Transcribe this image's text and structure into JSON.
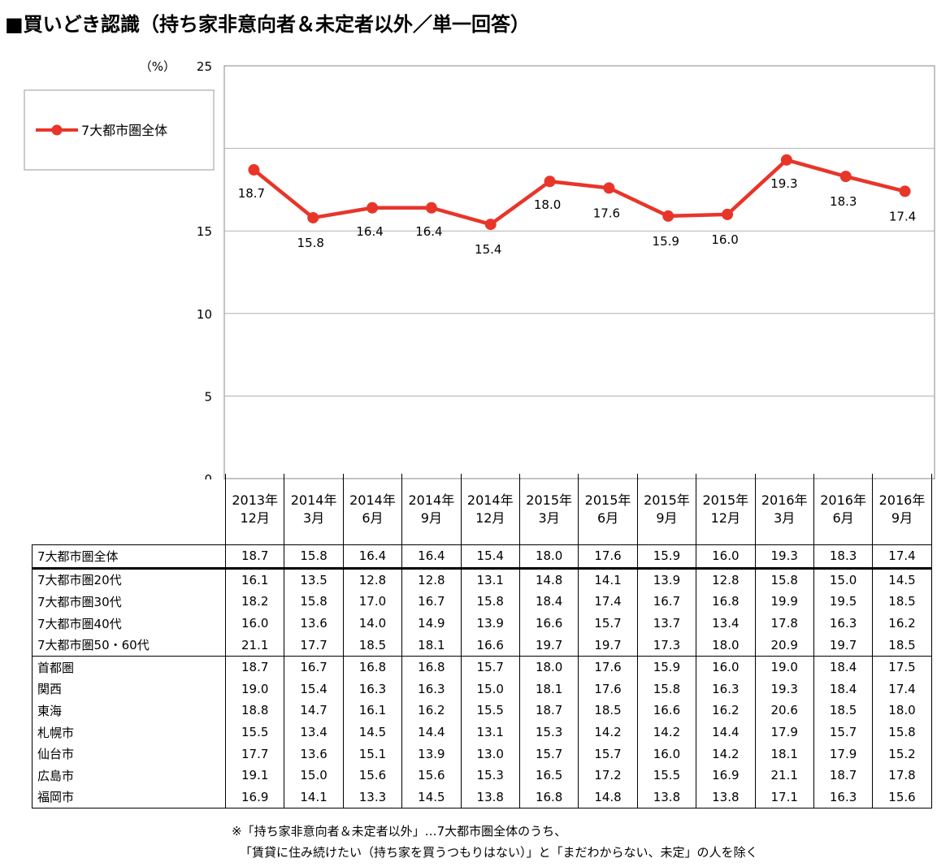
{
  "title": "■買いどき認識（持ち家非意向者＆未定者以外／単一回答）",
  "chart_data": {
    "type": "line",
    "ylabel": "（%）",
    "ylim": [
      0,
      25
    ],
    "yticks": [
      0,
      5,
      10,
      15,
      20,
      25
    ],
    "grid": true,
    "legend_position": "top-left",
    "line_color": "#e8352a",
    "categories": [
      [
        "2013年",
        "12月"
      ],
      [
        "2014年",
        "3月"
      ],
      [
        "2014年",
        "6月"
      ],
      [
        "2014年",
        "9月"
      ],
      [
        "2014年",
        "12月"
      ],
      [
        "2015年",
        "3月"
      ],
      [
        "2015年",
        "6月"
      ],
      [
        "2015年",
        "9月"
      ],
      [
        "2015年",
        "12月"
      ],
      [
        "2016年",
        "3月"
      ],
      [
        "2016年",
        "6月"
      ],
      [
        "2016年",
        "9月"
      ]
    ],
    "series": [
      {
        "name": "7大都市圏全体",
        "values": [
          18.7,
          15.8,
          16.4,
          16.4,
          15.4,
          18.0,
          17.6,
          15.9,
          16.0,
          19.3,
          18.3,
          17.4
        ],
        "labels": [
          "18.7",
          "15.8",
          "16.4",
          "16.4",
          "15.4",
          "18.0",
          "17.6",
          "15.9",
          "16.0",
          "19.3",
          "18.3",
          "17.4"
        ]
      }
    ]
  },
  "table": {
    "total": {
      "label": "7大都市圏全体",
      "values": [
        "18.7",
        "15.8",
        "16.4",
        "16.4",
        "15.4",
        "18.0",
        "17.6",
        "15.9",
        "16.0",
        "19.3",
        "18.3",
        "17.4"
      ]
    },
    "age_rows": [
      {
        "label": "7大都市圏20代",
        "values": [
          "16.1",
          "13.5",
          "12.8",
          "12.8",
          "13.1",
          "14.8",
          "14.1",
          "13.9",
          "12.8",
          "15.8",
          "15.0",
          "14.5"
        ]
      },
      {
        "label": "7大都市圏30代",
        "values": [
          "18.2",
          "15.8",
          "17.0",
          "16.7",
          "15.8",
          "18.4",
          "17.4",
          "16.7",
          "16.8",
          "19.9",
          "19.5",
          "18.5"
        ]
      },
      {
        "label": "7大都市圏40代",
        "values": [
          "16.0",
          "13.6",
          "14.0",
          "14.9",
          "13.9",
          "16.6",
          "15.7",
          "13.7",
          "13.4",
          "17.8",
          "16.3",
          "16.2"
        ]
      },
      {
        "label": "7大都市圏50・60代",
        "values": [
          "21.1",
          "17.7",
          "18.5",
          "18.1",
          "16.6",
          "19.7",
          "19.7",
          "17.3",
          "18.0",
          "20.9",
          "19.7",
          "18.5"
        ]
      }
    ],
    "region_rows": [
      {
        "label": "首都圏",
        "values": [
          "18.7",
          "16.7",
          "16.8",
          "16.8",
          "15.7",
          "18.0",
          "17.6",
          "15.9",
          "16.0",
          "19.0",
          "18.4",
          "17.5"
        ]
      },
      {
        "label": "関西",
        "values": [
          "19.0",
          "15.4",
          "16.3",
          "16.3",
          "15.0",
          "18.1",
          "17.6",
          "15.8",
          "16.3",
          "19.3",
          "18.4",
          "17.4"
        ]
      },
      {
        "label": "東海",
        "values": [
          "18.8",
          "14.7",
          "16.1",
          "16.2",
          "15.5",
          "18.7",
          "18.5",
          "16.6",
          "16.2",
          "20.6",
          "18.5",
          "18.0"
        ]
      },
      {
        "label": "札幌市",
        "values": [
          "15.5",
          "13.4",
          "14.5",
          "14.4",
          "13.1",
          "15.3",
          "14.2",
          "14.2",
          "14.4",
          "17.9",
          "15.7",
          "15.8"
        ]
      },
      {
        "label": "仙台市",
        "values": [
          "17.7",
          "13.6",
          "15.1",
          "13.9",
          "13.0",
          "15.7",
          "15.7",
          "16.0",
          "14.2",
          "18.1",
          "17.9",
          "15.2"
        ]
      },
      {
        "label": "広島市",
        "values": [
          "19.1",
          "15.0",
          "15.6",
          "15.6",
          "15.3",
          "16.5",
          "17.2",
          "15.5",
          "16.9",
          "21.1",
          "18.7",
          "17.8"
        ]
      },
      {
        "label": "福岡市",
        "values": [
          "16.9",
          "14.1",
          "13.3",
          "14.5",
          "13.8",
          "16.8",
          "14.8",
          "13.8",
          "13.8",
          "17.1",
          "16.3",
          "15.6"
        ]
      }
    ]
  },
  "footnote": {
    "line1": "※「持ち家非意向者＆未定者以外」…7大都市圏全体のうち、",
    "line2": "「賃貸に住み続けたい（持ち家を買うつもりはない）」と「まだわからない、未定」の人を除く"
  }
}
